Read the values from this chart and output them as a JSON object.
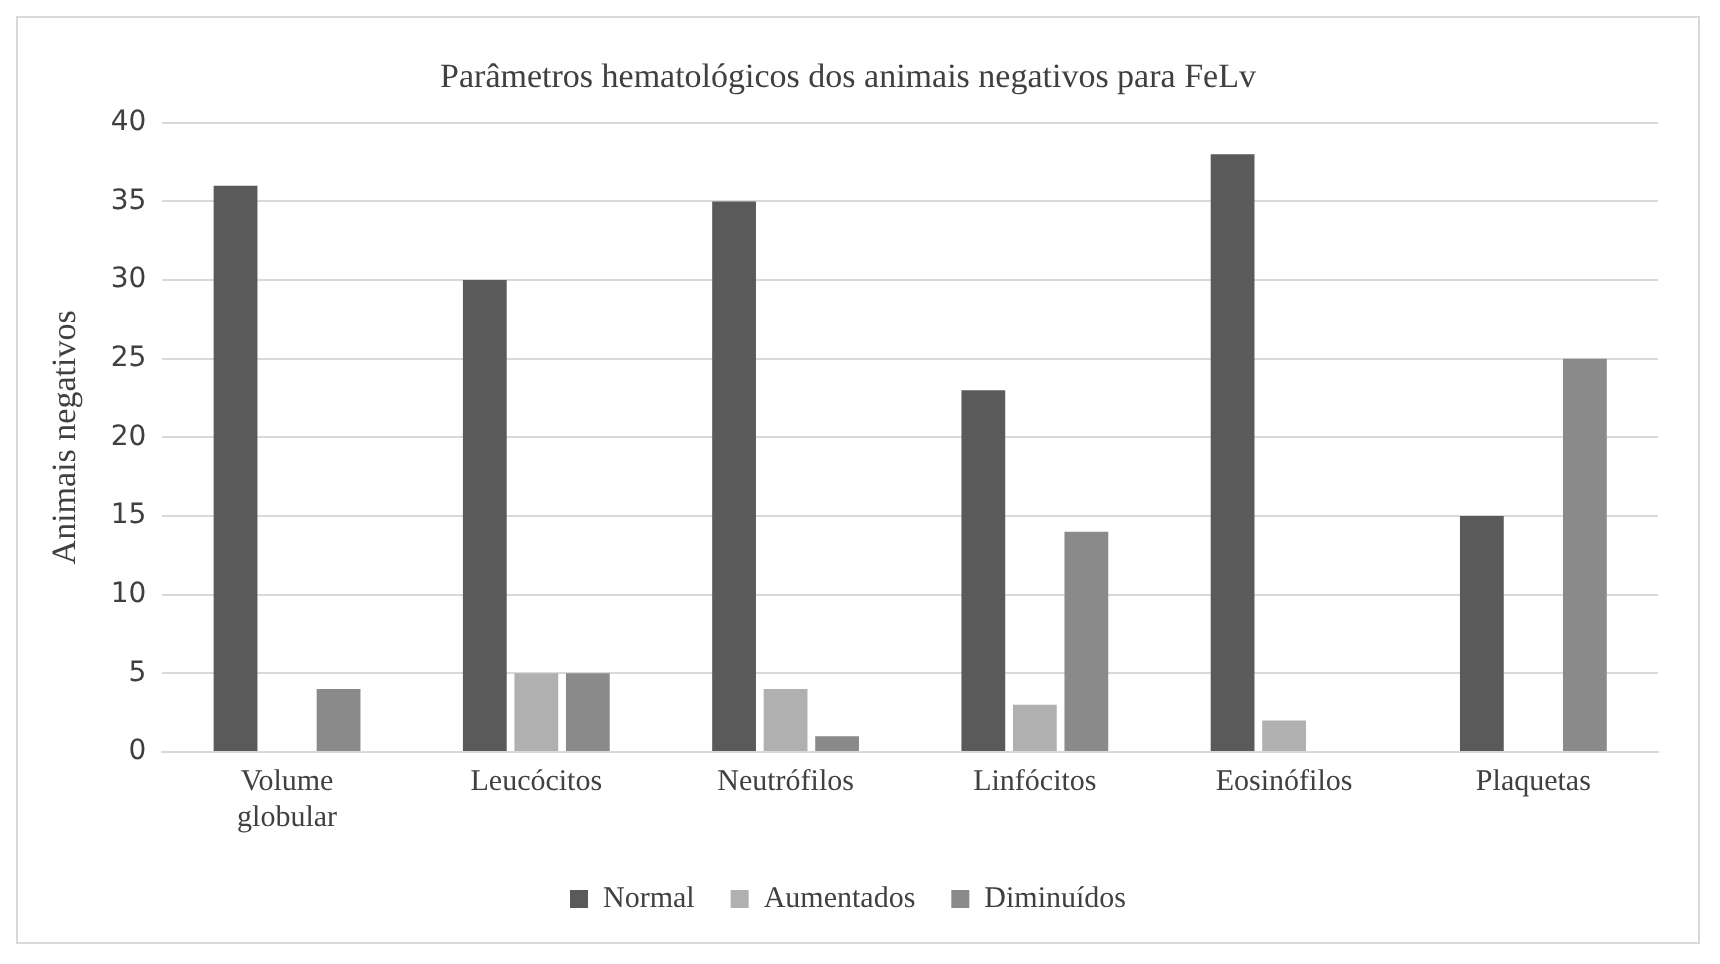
{
  "chart_data": {
    "type": "bar",
    "title": "Parâmetros hematológicos dos animais negativos para FeLv",
    "ylabel": "Animais negativos",
    "categories": [
      "Volume globular",
      "Leucócitos",
      "Neutrófilos",
      "Linfócitos",
      "Eosinófilos",
      "Plaquetas"
    ],
    "series": [
      {
        "name": "Normal",
        "color": "#5a5a5a",
        "values": [
          36,
          30,
          35,
          23,
          38,
          15
        ]
      },
      {
        "name": "Aumentados",
        "color": "#b0b0b0",
        "values": [
          0,
          5,
          4,
          3,
          2,
          0
        ]
      },
      {
        "name": "Diminuídos",
        "color": "#8a8a8a",
        "values": [
          4,
          5,
          1,
          14,
          0,
          25
        ]
      }
    ],
    "ylim": [
      0,
      40
    ],
    "yticks": [
      0,
      5,
      10,
      15,
      20,
      25,
      30,
      35,
      40
    ],
    "grid": "y",
    "legend": "bottom"
  }
}
